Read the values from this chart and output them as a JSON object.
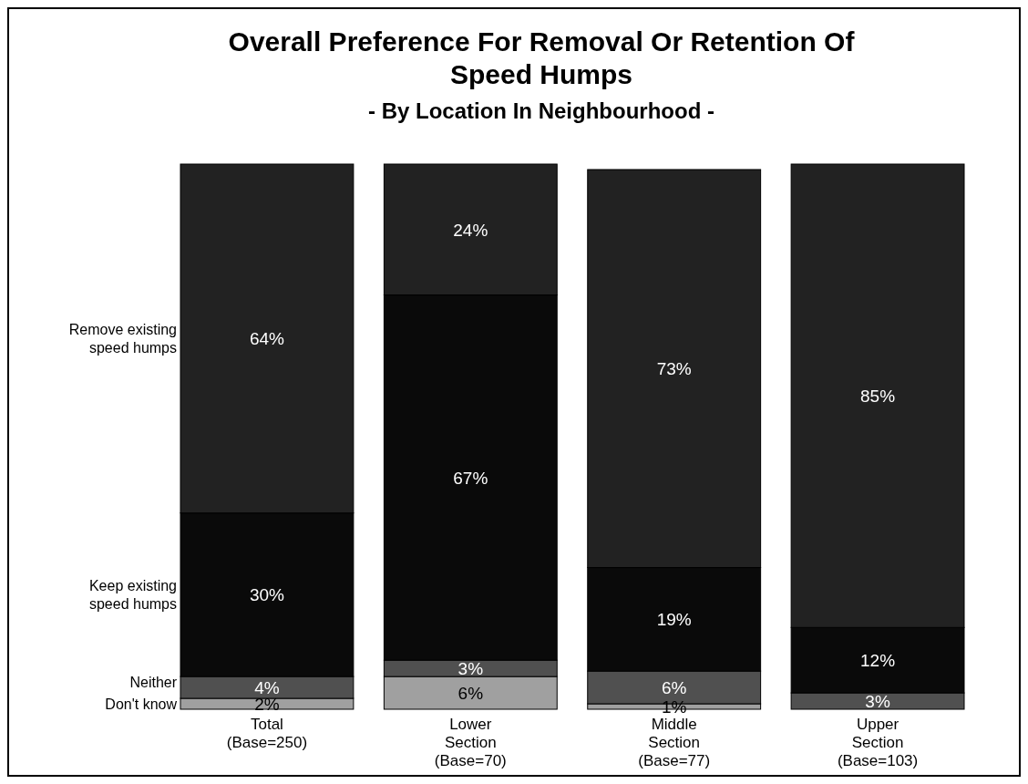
{
  "chart_data": {
    "type": "bar",
    "stacked": true,
    "title": "Overall Preference For Removal Or Retention Of Speed Humps",
    "subtitle": "- By Location In Neighbourhood -",
    "categories": [
      "Total\n\n(Base=250)",
      "Lower\nSection\n(Base=70)",
      "Middle\nSection\n(Base=77)",
      "Upper\nSection\n(Base=103)"
    ],
    "series": [
      {
        "name": "Don't know",
        "color": "#a0a0a0",
        "values": [
          2,
          6,
          1,
          null
        ],
        "value_labels": [
          "2%",
          "6%",
          "1%",
          null
        ]
      },
      {
        "name": "Neither",
        "color": "#505050",
        "values": [
          4,
          3,
          6,
          3
        ],
        "value_labels": [
          "4%",
          "3%",
          "6%",
          "3%"
        ]
      },
      {
        "name": "Keep existing speed humps",
        "color": "#0a0a0a",
        "values": [
          30,
          67,
          19,
          12
        ],
        "value_labels": [
          "30%",
          "67%",
          "19%",
          "12%"
        ]
      },
      {
        "name": "Remove existing speed humps",
        "color": "#222222",
        "values": [
          64,
          24,
          73,
          85
        ],
        "value_labels": [
          "64%",
          "24%",
          "73%",
          "85%"
        ]
      }
    ]
  }
}
